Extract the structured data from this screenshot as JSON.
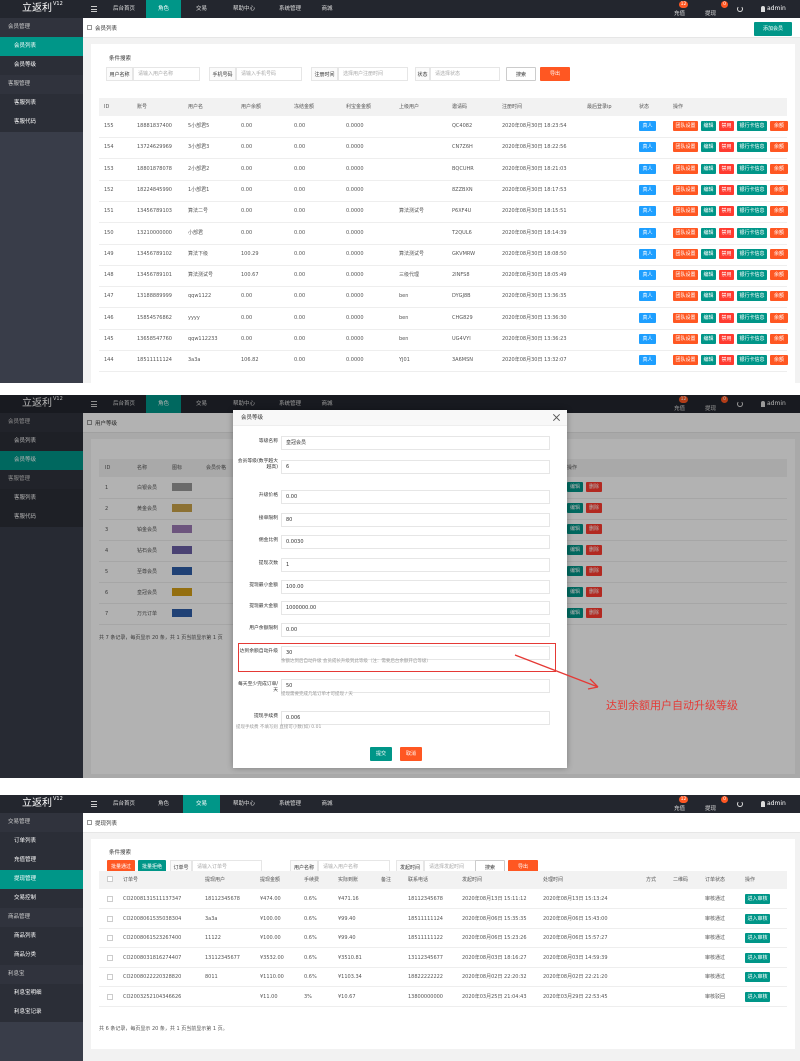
{
  "nav": {
    "logo": "立返利",
    "version": "V12",
    "menu": [
      "后台首页",
      "角色",
      "交易",
      "帮助中心",
      "系统管理",
      "商城"
    ],
    "recharge": "充值",
    "recharge_badge": "12",
    "withdraw": "提现",
    "withdraw_badge": "0",
    "user": "admin"
  },
  "member_list": {
    "sidebar": [
      {
        "title": "会员管理",
        "items": [
          {
            "label": "会员列表",
            "active": true
          },
          {
            "label": "会员等级"
          }
        ]
      },
      {
        "title": "客服管理",
        "items": [
          {
            "label": "客服列表"
          },
          {
            "label": "客服代码"
          }
        ]
      }
    ],
    "tab": "会员列表",
    "add_button": "添加会员",
    "search": {
      "title": "条件搜索",
      "fields": [
        {
          "label": "用户名称",
          "placeholder": "请输入用户名称"
        },
        {
          "label": "手机号码",
          "placeholder": "请输入手机号码"
        },
        {
          "label": "注册时间",
          "placeholder": "选择用户注册时间"
        },
        {
          "label": "状态",
          "placeholder": "请选择状态"
        }
      ],
      "search_button": "搜索",
      "export_button": "导出"
    },
    "table": {
      "headers": [
        "ID",
        "账号",
        "用户名",
        "用户余额",
        "冻结金额",
        "利宝金金额",
        "上级用户",
        "邀请码",
        "注册时间",
        "最后登录ip",
        "状态",
        "操作"
      ],
      "rows": [
        [
          "155",
          "18881837400",
          "5小部君5",
          "0.00",
          "0.00",
          "0.0000",
          "",
          "QC4082",
          "2020年08月30日 18:23:54",
          "",
          "真人"
        ],
        [
          "154",
          "13724629969",
          "3小部君3",
          "0.00",
          "0.00",
          "0.0000",
          "",
          "CN7Z6H",
          "2020年08月30日 18:22:56",
          "",
          "真人"
        ],
        [
          "153",
          "18801878078",
          "2小部君2",
          "0.00",
          "0.00",
          "0.0000",
          "",
          "BQCUHR",
          "2020年08月30日 18:21:03",
          "",
          "真人"
        ],
        [
          "152",
          "18224845990",
          "1小部君1",
          "0.00",
          "0.00",
          "0.0000",
          "",
          "8ZZBXN",
          "2020年08月30日 18:17:53",
          "",
          "真人"
        ],
        [
          "151",
          "13456789103",
          "算法二号",
          "0.00",
          "0.00",
          "0.0000",
          "算法测试号",
          "P6XF4U",
          "2020年08月30日 18:15:51",
          "",
          "真人"
        ],
        [
          "150",
          "13210000000",
          "小部君",
          "0.00",
          "0.00",
          "0.0000",
          "",
          "T2QUL6",
          "2020年08月30日 18:14:39",
          "",
          "真人"
        ],
        [
          "149",
          "13456789102",
          "算法下级",
          "100.29",
          "0.00",
          "0.0000",
          "算法测试号",
          "GKVMRW",
          "2020年08月30日 18:08:50",
          "",
          "真人"
        ],
        [
          "148",
          "13456789101",
          "算法测试号",
          "100.67",
          "0.00",
          "0.0000",
          "三级代理",
          "2INFS8",
          "2020年08月30日 18:05:49",
          "",
          "真人"
        ],
        [
          "147",
          "13188889999",
          "qqw1122",
          "0.00",
          "0.00",
          "0.0000",
          "ben",
          "DYGJ8B",
          "2020年08月30日 13:36:35",
          "",
          "真人"
        ],
        [
          "146",
          "15854576862",
          "yyyy",
          "0.00",
          "0.00",
          "0.0000",
          "ben",
          "CHG829",
          "2020年08月30日 13:36:30",
          "",
          "真人"
        ],
        [
          "145",
          "13658547760",
          "qqw112233",
          "0.00",
          "0.00",
          "0.0000",
          "ben",
          "UG4VYI",
          "2020年08月30日 13:36:23",
          "",
          "真人"
        ],
        [
          "144",
          "18511111124",
          "3a3a",
          "106.82",
          "0.00",
          "0.0000",
          "YJ01",
          "3A6MSN",
          "2020年08月30日 13:32:07",
          "",
          "真人"
        ]
      ],
      "actions": [
        "团队设置",
        "编辑",
        "禁用",
        "银行卡信息",
        "余额"
      ]
    }
  },
  "member_level": {
    "sidebar": [
      {
        "title": "会员管理",
        "items": [
          {
            "label": "会员列表"
          },
          {
            "label": "会员等级",
            "active": true
          }
        ]
      },
      {
        "title": "客服管理",
        "items": [
          {
            "label": "客服列表"
          },
          {
            "label": "客服代码"
          }
        ]
      }
    ],
    "tab": "用户等级",
    "table": {
      "headers": [
        "ID",
        "名称",
        "图标",
        "会员价格",
        "操作"
      ],
      "rows": [
        [
          "1",
          "白银会员"
        ],
        [
          "2",
          "黄金会员"
        ],
        [
          "3",
          "铂金会员"
        ],
        [
          "4",
          "钻石会员"
        ],
        [
          "5",
          "至尊会员"
        ],
        [
          "6",
          "皇冠会员"
        ],
        [
          "7",
          "万元订单"
        ]
      ],
      "actions": [
        "编辑",
        "删除"
      ],
      "footer": "共 7 条记录，每页显示 20 条，共 1 页当前显示第 1 页"
    },
    "modal": {
      "title": "会员等级",
      "fields": [
        {
          "label": "等级名称",
          "value": "皇冠会员"
        },
        {
          "label": "会员等级(数字越大越高)",
          "value": "6"
        },
        {
          "label": "升级价格",
          "value": "0.00"
        },
        {
          "label": "接单限制",
          "value": "80"
        },
        {
          "label": "佣金比例",
          "value": "0.0030"
        },
        {
          "label": "提现次数",
          "value": "1"
        },
        {
          "label": "提现最小金额",
          "value": "100.00"
        },
        {
          "label": "提现最大金额",
          "value": "1000000.00"
        },
        {
          "label": "用户余额限制",
          "value": "0.00"
        },
        {
          "label": "达到余额自动升级",
          "value": "30",
          "hint": "余额达到后自动升级 会员成长升级到此等级（注：需要后台余额开启等级）"
        },
        {
          "label": "每天至少完成订单/天",
          "value": "50",
          "hint": "提现需要完成几笔订单才可提现 / 天"
        },
        {
          "label": "提现手续费",
          "value": "0.006",
          "hint": "提现手续费 不填写则 直接可小数(如) 0.01"
        }
      ],
      "submit": "提交",
      "cancel": "取消"
    },
    "annotation": "达到余额用户自动升级等级"
  },
  "withdraw_list": {
    "sidebar": [
      {
        "title": "交易管理",
        "items": [
          {
            "label": "订单列表"
          },
          {
            "label": "充值管理"
          },
          {
            "label": "提现管理",
            "active": true
          },
          {
            "label": "交易控制"
          }
        ]
      },
      {
        "title": "商品管理",
        "items": [
          {
            "label": "商品列表"
          },
          {
            "label": "商品分类"
          }
        ]
      },
      {
        "title": "利息宝",
        "items": [
          {
            "label": "利息宝明细"
          },
          {
            "label": "利息宝记录"
          }
        ]
      }
    ],
    "tab": "提现列表",
    "search": {
      "title": "条件搜索",
      "batch_pass": "批量通过",
      "batch_reject": "批量拒绝",
      "fields": [
        {
          "label": "订单号",
          "placeholder": "请输入订单号"
        },
        {
          "label": "用户名称",
          "placeholder": "请输入用户名称"
        },
        {
          "label": "发起时间",
          "placeholder": "请选择发起时间"
        }
      ],
      "search_button": "搜索",
      "export_button": "导出"
    },
    "table": {
      "headers": [
        "订单号",
        "提现用户",
        "提现金额",
        "手续费",
        "实际到账",
        "备注",
        "联系电话",
        "发起时间",
        "处理时间",
        "方式",
        "二维码",
        "订单状态",
        "操作"
      ],
      "rows": [
        [
          "CO2008131511137347",
          "18112345678",
          "¥474.00",
          "0.6%",
          "¥471.16",
          "",
          "18112345678",
          "2020年08月13日 15:11:12",
          "2020年08月13日 15:13:24",
          "",
          "",
          "审核通过"
        ],
        [
          "CO2008061535038304",
          "3a3a",
          "¥100.00",
          "0.6%",
          "¥99.40",
          "",
          "18511111124",
          "2020年08月06日 15:35:35",
          "2020年08月06日 15:43:00",
          "",
          "",
          "审核通过"
        ],
        [
          "CO2008061523267400",
          "11122",
          "¥100.00",
          "0.6%",
          "¥99.40",
          "",
          "18511111122",
          "2020年08月06日 15:23:26",
          "2020年08月06日 15:57:27",
          "",
          "",
          "审核通过"
        ],
        [
          "CO2008031816274407",
          "13112345677",
          "¥3532.00",
          "0.6%",
          "¥3510.81",
          "",
          "13112345677",
          "2020年08月03日 18:16:27",
          "2020年08月03日 14:59:39",
          "",
          "",
          "审核通过"
        ],
        [
          "CO2008022220328820",
          "8011",
          "¥1110.00",
          "0.6%",
          "¥1103.34",
          "",
          "18822222222",
          "2020年08月02日 22:20:32",
          "2020年08月02日 22:21:20",
          "",
          "",
          "审核通过"
        ],
        [
          "CO2003252104346626",
          "",
          "¥11.00",
          "3%",
          "¥10.67",
          "",
          "13800000000",
          "2020年03月25日 21:04:43",
          "2020年03月29日 22:53:45",
          "",
          "",
          "审核驳回"
        ]
      ],
      "action": "进入审核",
      "footer": "共 6 条记录，每页显示 20 条，共 1 页当前显示第 1 页。"
    }
  }
}
